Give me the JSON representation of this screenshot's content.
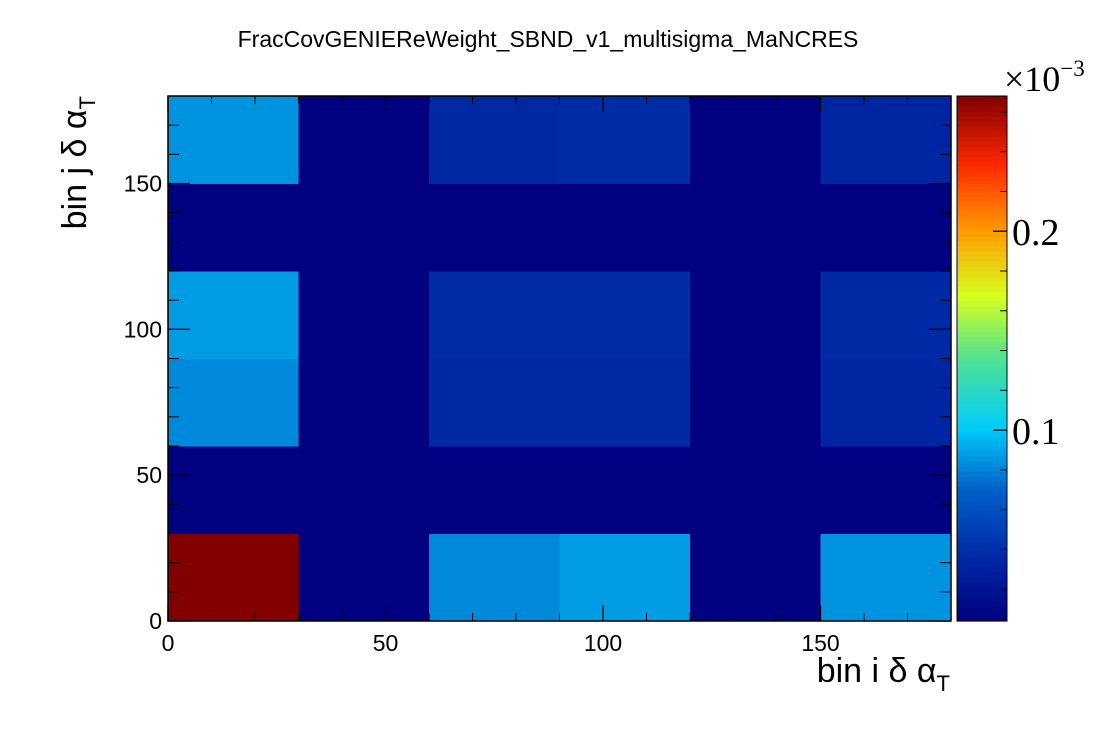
{
  "chart_data": {
    "type": "heatmap",
    "title": "FracCovGENIEReWeight_SBND_v1_multisigma_MaNCRES",
    "xlabel": {
      "text": "bin i δ α",
      "subscript": "T"
    },
    "ylabel": {
      "text": "bin j δ α",
      "subscript": "T"
    },
    "xlim": [
      0,
      180
    ],
    "ylim": [
      0,
      180
    ],
    "x_ticks": [
      "0",
      "50",
      "100",
      "150"
    ],
    "y_ticks": [
      "0",
      "50",
      "100",
      "150"
    ],
    "x_tick_values": [
      0,
      50,
      100,
      150
    ],
    "y_tick_values": [
      0,
      50,
      100,
      150
    ],
    "x_bin_edges": [
      0,
      30,
      60,
      90,
      120,
      150,
      180
    ],
    "y_bin_edges": [
      0,
      30,
      60,
      90,
      120,
      150,
      180
    ],
    "values": [
      [
        0.268,
        0.004,
        0.082,
        0.088,
        0.004,
        0.085
      ],
      [
        0.004,
        0.004,
        0.004,
        0.004,
        0.004,
        0.004
      ],
      [
        0.082,
        0.004,
        0.036,
        0.036,
        0.004,
        0.034
      ],
      [
        0.088,
        0.004,
        0.038,
        0.038,
        0.004,
        0.036
      ],
      [
        0.004,
        0.004,
        0.004,
        0.004,
        0.004,
        0.004
      ],
      [
        0.085,
        0.004,
        0.035,
        0.038,
        0.004,
        0.033
      ]
    ],
    "values_note": "values[row][col]; row index = y bin (bottom to top), col index = x bin (left to right)",
    "colorbar": {
      "multiplier": "×10",
      "exponent": "−3",
      "range": [
        0.004,
        0.268
      ],
      "ticks": [
        "0.1",
        "0.2"
      ],
      "tick_values": [
        0.1,
        0.2
      ],
      "palette": "rainbow"
    },
    "grid": false,
    "legend": "none"
  }
}
